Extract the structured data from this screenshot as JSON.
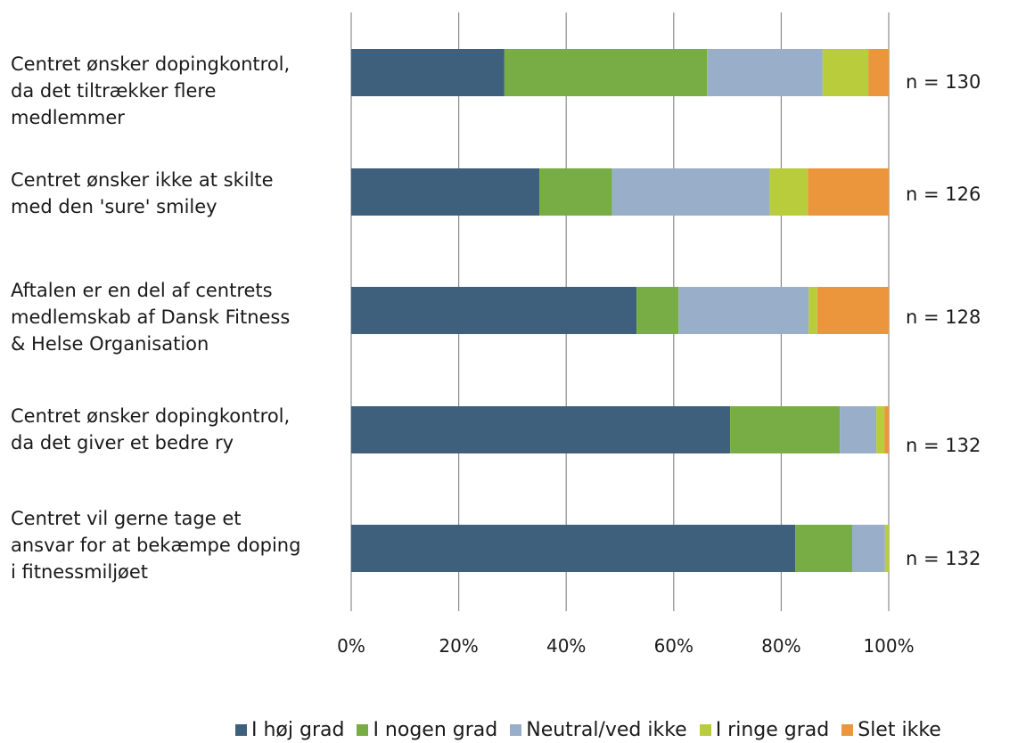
{
  "chart_data": {
    "type": "bar",
    "orientation": "horizontal",
    "stacked": "percent",
    "categories": [
      [
        "Centret ønsker dopingkontrol,",
        "da det tiltrækker flere",
        "medlemmer"
      ],
      [
        "Centret ønsker ikke at skilte",
        "med den 'sure' smiley"
      ],
      [
        "Aftalen er en del af centrets",
        "medlemskab af Dansk Fitness",
        "& Helse Organisation"
      ],
      [
        "Centret ønsker dopingkontrol,",
        "da det giver et bedre ry"
      ],
      [
        "Centret vil gerne tage et",
        "ansvar for at bekæmpe doping",
        "i fitnessmiljøet"
      ]
    ],
    "n_labels": [
      "n = 130",
      "n = 126",
      "n = 128",
      "n = 132",
      "n = 132"
    ],
    "series": [
      {
        "name": "I høj grad",
        "color": "#3f607c",
        "values": [
          28.5,
          35.0,
          53.1,
          70.5,
          82.6
        ]
      },
      {
        "name": "I nogen grad",
        "color": "#77ad44",
        "values": [
          37.7,
          13.5,
          7.8,
          20.4,
          10.6
        ]
      },
      {
        "name": "Neutral/ved ikke",
        "color": "#98aec9",
        "values": [
          21.5,
          29.4,
          24.2,
          6.8,
          6.1
        ]
      },
      {
        "name": "I ringe grad",
        "color": "#b9cc3c",
        "values": [
          8.5,
          7.1,
          1.6,
          1.5,
          0.7
        ]
      },
      {
        "name": "Slet ikke",
        "color": "#eb963d",
        "values": [
          3.8,
          15.0,
          13.3,
          0.8,
          0.0
        ]
      }
    ],
    "xlim": [
      0,
      100
    ],
    "xticks": [
      "0%",
      "20%",
      "40%",
      "60%",
      "80%",
      "100%"
    ],
    "grid": true,
    "legend": "bottom"
  }
}
